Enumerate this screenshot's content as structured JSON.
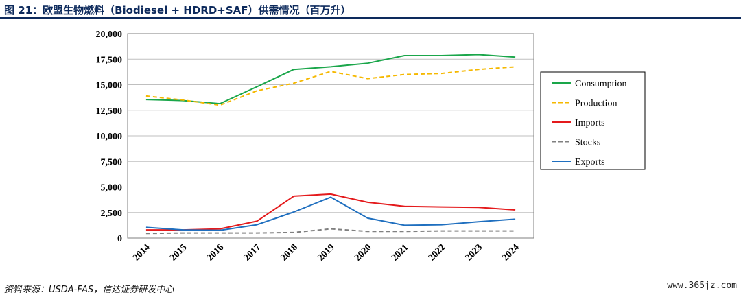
{
  "header": {
    "title": "图 21：欧盟生物燃料（Biodiesel + HDRD+SAF）供需情况（百万升）"
  },
  "footer": {
    "source": "资料来源：USDA-FAS，信达证券研发中心",
    "watermark": "www.365jz.com"
  },
  "chart_data": {
    "type": "line",
    "x": [
      "2014",
      "2015",
      "2016",
      "2017",
      "2018",
      "2019",
      "2020",
      "2021",
      "2022",
      "2023",
      "2024"
    ],
    "ylim": [
      0,
      20000
    ],
    "yticks": [
      0,
      2500,
      5000,
      7500,
      10000,
      12500,
      15000,
      17500,
      20000
    ],
    "ytick_labels": [
      "0",
      "2,500",
      "5,000",
      "7,500",
      "10,000",
      "12,500",
      "15,000",
      "17,500",
      "20,000"
    ],
    "grid": "horizontal",
    "legend_position": "right",
    "series": [
      {
        "name": "Consumption",
        "color": "#1aa64a",
        "dash": "solid",
        "values": [
          13550,
          13450,
          13150,
          14800,
          16500,
          16750,
          17100,
          17850,
          17850,
          17950,
          17700
        ]
      },
      {
        "name": "Production",
        "color": "#f5b800",
        "dash": "dashed",
        "values": [
          13900,
          13500,
          13000,
          14400,
          15150,
          16300,
          15600,
          16000,
          16100,
          16500,
          16750
        ]
      },
      {
        "name": "Imports",
        "color": "#e41a1c",
        "dash": "solid",
        "values": [
          800,
          800,
          900,
          1650,
          4100,
          4300,
          3500,
          3100,
          3050,
          3000,
          2750
        ]
      },
      {
        "name": "Stocks",
        "color": "#808080",
        "dash": "dashed",
        "values": [
          450,
          500,
          500,
          500,
          550,
          900,
          650,
          650,
          700,
          700,
          700
        ]
      },
      {
        "name": "Exports",
        "color": "#1f6fbf",
        "dash": "solid",
        "values": [
          1050,
          800,
          750,
          1300,
          2550,
          4000,
          1950,
          1250,
          1300,
          1600,
          1850
        ]
      }
    ]
  }
}
